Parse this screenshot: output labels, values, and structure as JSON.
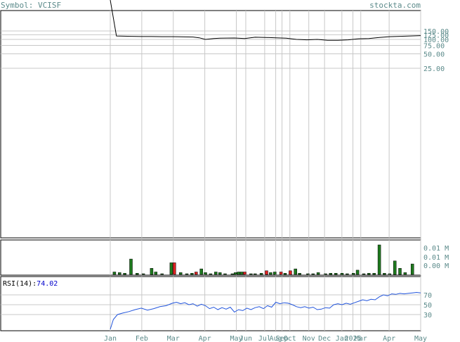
{
  "header": {
    "symbol_label": "Symbol: VCISF",
    "site": "stockta.com"
  },
  "chart_data": [
    {
      "type": "line",
      "panel": "price",
      "y_ticks": [
        "150.00",
        "125.00",
        "100.00",
        "75.00",
        "50.00",
        "25.00"
      ],
      "y_tick_values": [
        150,
        125,
        100,
        75,
        50,
        25
      ],
      "x": [
        0,
        0.3,
        1,
        1.5,
        2,
        2.5,
        3,
        3.5,
        4,
        4.3,
        4.6,
        5,
        5.3,
        6,
        6.5,
        7,
        7.5,
        8,
        8.5,
        9,
        9.5,
        10,
        10.5,
        11,
        11.5,
        12,
        12.5,
        13,
        13.5,
        14,
        14.5,
        15
      ],
      "y": [
        1000000,
        118,
        116,
        115,
        115,
        114,
        114,
        113,
        112,
        108,
        100,
        104,
        106,
        107,
        104,
        111,
        110,
        108,
        106,
        100,
        98,
        100,
        96,
        96,
        98,
        103,
        104,
        110,
        114,
        116,
        118,
        120
      ]
    },
    {
      "type": "bar",
      "panel": "volume",
      "y_ticks": [
        "0.01 M",
        "0.01 M",
        "0.00 M"
      ],
      "bars": [
        {
          "x": 0.2,
          "v": 0.4,
          "c": "up"
        },
        {
          "x": 0.45,
          "v": 0.3,
          "c": "up"
        },
        {
          "x": 0.7,
          "v": 0.2,
          "c": "up"
        },
        {
          "x": 1.0,
          "v": 2.5,
          "c": "up"
        },
        {
          "x": 1.3,
          "v": 0.2,
          "c": "up"
        },
        {
          "x": 1.6,
          "v": 0.1,
          "c": "up"
        },
        {
          "x": 2.0,
          "v": 1.0,
          "c": "up"
        },
        {
          "x": 2.2,
          "v": 0.4,
          "c": "up"
        },
        {
          "x": 2.5,
          "v": 0.1,
          "c": "up"
        },
        {
          "x": 2.95,
          "v": 1.9,
          "c": "up"
        },
        {
          "x": 3.1,
          "v": 1.9,
          "c": "down"
        },
        {
          "x": 3.4,
          "v": 0.3,
          "c": "up"
        },
        {
          "x": 3.7,
          "v": 0.1,
          "c": "up"
        },
        {
          "x": 3.95,
          "v": 0.2,
          "c": "up"
        },
        {
          "x": 4.15,
          "v": 0.4,
          "c": "down"
        },
        {
          "x": 4.4,
          "v": 0.9,
          "c": "up"
        },
        {
          "x": 4.6,
          "v": 0.3,
          "c": "up"
        },
        {
          "x": 4.85,
          "v": 0.1,
          "c": "up"
        },
        {
          "x": 5.1,
          "v": 0.4,
          "c": "up"
        },
        {
          "x": 5.3,
          "v": 0.3,
          "c": "up"
        },
        {
          "x": 5.55,
          "v": 0.1,
          "c": "up"
        },
        {
          "x": 5.9,
          "v": 0.1,
          "c": "up"
        },
        {
          "x": 6.05,
          "v": 0.3,
          "c": "up"
        },
        {
          "x": 6.2,
          "v": 0.4,
          "c": "up"
        },
        {
          "x": 6.35,
          "v": 0.4,
          "c": "up"
        },
        {
          "x": 6.5,
          "v": 0.4,
          "c": "down"
        },
        {
          "x": 6.8,
          "v": 0.1,
          "c": "up"
        },
        {
          "x": 7.0,
          "v": 0.1,
          "c": "up"
        },
        {
          "x": 7.3,
          "v": 0.2,
          "c": "up"
        },
        {
          "x": 7.55,
          "v": 0.6,
          "c": "down"
        },
        {
          "x": 7.75,
          "v": 0.3,
          "c": "up"
        },
        {
          "x": 7.95,
          "v": 0.4,
          "c": "up"
        },
        {
          "x": 8.25,
          "v": 0.4,
          "c": "down"
        },
        {
          "x": 8.45,
          "v": 0.2,
          "c": "up"
        },
        {
          "x": 8.7,
          "v": 0.6,
          "c": "down"
        },
        {
          "x": 8.95,
          "v": 0.9,
          "c": "up"
        },
        {
          "x": 9.15,
          "v": 0.2,
          "c": "up"
        },
        {
          "x": 9.55,
          "v": 0.1,
          "c": "up"
        },
        {
          "x": 9.8,
          "v": 0.1,
          "c": "up"
        },
        {
          "x": 10.05,
          "v": 0.3,
          "c": "up"
        },
        {
          "x": 10.4,
          "v": 0.1,
          "c": "up"
        },
        {
          "x": 10.65,
          "v": 0.2,
          "c": "up"
        },
        {
          "x": 10.9,
          "v": 0.2,
          "c": "up"
        },
        {
          "x": 11.2,
          "v": 0.2,
          "c": "up"
        },
        {
          "x": 11.45,
          "v": 0.1,
          "c": "up"
        },
        {
          "x": 11.75,
          "v": 0.2,
          "c": "up"
        },
        {
          "x": 11.95,
          "v": 0.7,
          "c": "up"
        },
        {
          "x": 12.25,
          "v": 0.1,
          "c": "up"
        },
        {
          "x": 12.5,
          "v": 0.2,
          "c": "up"
        },
        {
          "x": 12.75,
          "v": 0.2,
          "c": "up"
        },
        {
          "x": 13.0,
          "v": 4.8,
          "c": "up"
        },
        {
          "x": 13.25,
          "v": 0.2,
          "c": "up"
        },
        {
          "x": 13.5,
          "v": 0.1,
          "c": "up"
        },
        {
          "x": 13.75,
          "v": 2.2,
          "c": "up"
        },
        {
          "x": 14.0,
          "v": 1.0,
          "c": "up"
        },
        {
          "x": 14.25,
          "v": 0.3,
          "c": "up"
        },
        {
          "x": 14.6,
          "v": 1.7,
          "c": "up"
        }
      ]
    },
    {
      "type": "line",
      "panel": "rsi",
      "label": "RSI(14):",
      "value": "74.02",
      "y_ticks": [
        "70",
        "50",
        "30"
      ],
      "y_tick_values": [
        70,
        50,
        30
      ],
      "x": [
        0,
        0.15,
        0.35,
        0.6,
        0.9,
        1.2,
        1.5,
        1.8,
        2.1,
        2.4,
        2.7,
        3.0,
        3.2,
        3.4,
        3.6,
        3.8,
        4.0,
        4.2,
        4.4,
        4.6,
        4.8,
        5.0,
        5.2,
        5.4,
        5.6,
        5.8,
        6.0,
        6.2,
        6.4,
        6.6,
        6.8,
        7.0,
        7.2,
        7.4,
        7.6,
        7.8,
        8.0,
        8.2,
        8.4,
        8.6,
        8.8,
        9.0,
        9.2,
        9.4,
        9.6,
        9.8,
        10.0,
        10.2,
        10.4,
        10.6,
        10.8,
        11.0,
        11.2,
        11.4,
        11.6,
        11.8,
        12.0,
        12.2,
        12.4,
        12.6,
        12.8,
        13.0,
        13.2,
        13.4,
        13.6,
        13.8,
        14.0,
        14.2,
        14.4,
        14.6,
        14.8,
        15.0
      ],
      "y": [
        0,
        20,
        30,
        33,
        36,
        40,
        43,
        39,
        42,
        46,
        48,
        53,
        55,
        52,
        54,
        50,
        52,
        47,
        51,
        48,
        42,
        45,
        40,
        44,
        41,
        45,
        35,
        40,
        38,
        43,
        40,
        44,
        46,
        42,
        48,
        45,
        55,
        52,
        54,
        53,
        50,
        46,
        44,
        46,
        43,
        45,
        40,
        41,
        44,
        43,
        50,
        52,
        50,
        53,
        51,
        54,
        57,
        60,
        58,
        61,
        60,
        66,
        70,
        68,
        72,
        71,
        73,
        72,
        73,
        74,
        75,
        74
      ]
    }
  ],
  "x_axis": {
    "labels": [
      "Jan",
      "Feb",
      "Mar",
      "Apr",
      "May",
      "Jun",
      "Jul",
      "Aug",
      "Sep",
      "Oct",
      "Nov",
      "Dec",
      "Jan",
      "2025",
      "Mar",
      "Apr",
      "May"
    ],
    "positions": [
      0,
      1,
      2,
      3,
      4,
      4.3,
      4.9,
      5.25,
      5.45,
      5.7,
      6.3,
      6.8,
      7.35,
      7.7,
      7.95,
      8.85,
      9.85
    ]
  },
  "colors": {
    "price_line": "#000000",
    "vol_up": "#1e7a1e",
    "vol_down": "#dd2222",
    "rsi_line": "#2255dd",
    "grid": "#c8c8c8",
    "label": "#5b8a8a"
  }
}
